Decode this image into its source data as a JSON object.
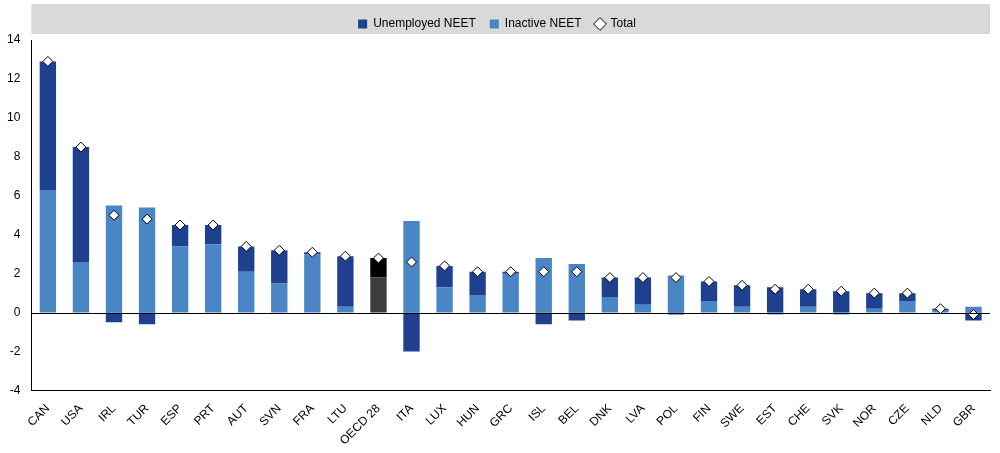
{
  "chart_data": {
    "type": "bar",
    "stacked": true,
    "grid": false,
    "legend": "top",
    "data_labels": false,
    "categories": [
      "CAN",
      "USA",
      "IRL",
      "TUR",
      "ESP",
      "PRT",
      "AUT",
      "SVN",
      "FRA",
      "LTU",
      "OECD 28",
      "ITA",
      "LUX",
      "HUN",
      "GRC",
      "ISL",
      "BEL",
      "DNK",
      "LVA",
      "POL",
      "FIN",
      "SWE",
      "EST",
      "CHE",
      "SVK",
      "NOR",
      "CZE",
      "NLD",
      "GBR"
    ],
    "ylim": [
      -4,
      14
    ],
    "yticks": [
      -4,
      -2,
      0,
      2,
      4,
      6,
      8,
      10,
      12,
      14
    ],
    "series": [
      {
        "name": "Unemployed NEET",
        "type": "bar",
        "color": "#1f3f8f",
        "colors": [
          "#1f3f8f",
          "#1f3f8f",
          "#1f3f8f",
          "#1f3f8f",
          "#1f3f8f",
          "#1f3f8f",
          "#1f3f8f",
          "#1f3f8f",
          "#1f3f8f",
          "#1f3f8f",
          "#000000",
          "#1f3f8f",
          "#1f3f8f",
          "#1f3f8f",
          "#1f3f8f",
          "#1f3f8f",
          "#1f3f8f",
          "#1f3f8f",
          "#1f3f8f",
          "#1f3f8f",
          "#1f3f8f",
          "#1f3f8f",
          "#1f3f8f",
          "#1f3f8f",
          "#1f3f8f",
          "#1f3f8f",
          "#1f3f8f",
          "#1f3f8f",
          "#1f3f8f"
        ],
        "values": [
          6.6,
          5.9,
          -0.5,
          -0.6,
          1.1,
          1.0,
          1.3,
          1.7,
          0.1,
          2.6,
          1.0,
          -2.0,
          1.1,
          1.2,
          0.1,
          -0.6,
          -0.4,
          1.0,
          1.4,
          -0.1,
          1.0,
          1.1,
          1.3,
          0.9,
          1.1,
          0.8,
          0.4,
          0.1,
          -0.4
        ]
      },
      {
        "name": "Inactive NEET",
        "type": "bar",
        "color": "#4a86c5",
        "colors": [
          "#4a86c5",
          "#4a86c5",
          "#4a86c5",
          "#4a86c5",
          "#4a86c5",
          "#4a86c5",
          "#4a86c5",
          "#4a86c5",
          "#4a86c5",
          "#4a86c5",
          "#3c3c3c",
          "#4a86c5",
          "#4a86c5",
          "#4a86c5",
          "#4a86c5",
          "#4a86c5",
          "#4a86c5",
          "#4a86c5",
          "#4a86c5",
          "#4a86c5",
          "#4a86c5",
          "#4a86c5",
          "#4a86c5",
          "#4a86c5",
          "#4a86c5",
          "#4a86c5",
          "#4a86c5",
          "#4a86c5",
          "#4a86c5"
        ],
        "values": [
          6.3,
          2.6,
          5.5,
          5.4,
          3.4,
          3.5,
          2.1,
          1.5,
          3.0,
          0.3,
          1.8,
          4.7,
          1.3,
          0.9,
          2.0,
          2.8,
          2.5,
          0.8,
          0.4,
          1.9,
          0.6,
          0.3,
          -0.1,
          0.3,
          -0.1,
          0.2,
          0.6,
          0.1,
          0.3
        ]
      },
      {
        "name": "Total",
        "type": "scatter",
        "marker": "diamond",
        "color": "#ffffff",
        "values": [
          12.9,
          8.5,
          5.0,
          4.8,
          4.5,
          4.5,
          3.4,
          3.2,
          3.1,
          2.9,
          2.8,
          2.6,
          2.4,
          2.1,
          2.1,
          2.1,
          2.1,
          1.8,
          1.8,
          1.8,
          1.6,
          1.4,
          1.2,
          1.2,
          1.1,
          1.0,
          1.0,
          0.2,
          -0.1
        ]
      }
    ]
  }
}
